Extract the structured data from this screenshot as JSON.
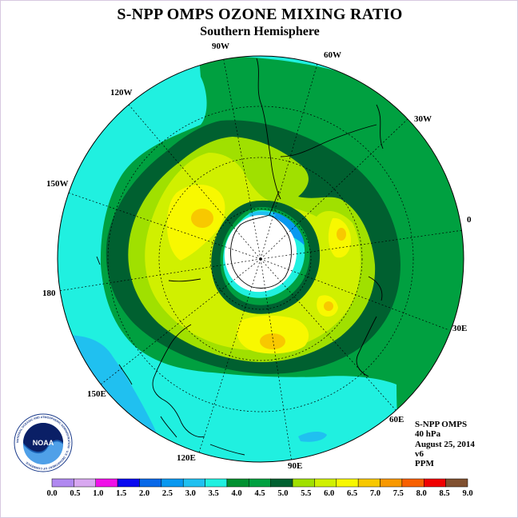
{
  "header": {
    "title": "S-NPP OMPS OZONE MIXING RATIO",
    "subtitle": "Southern Hemisphere"
  },
  "map": {
    "projection": "south-polar-stereographic",
    "longitude_labels": [
      "90W",
      "60W",
      "30W",
      "0",
      "30E",
      "60E",
      "90E",
      "120E",
      "150E",
      "180",
      "150W",
      "120W"
    ]
  },
  "info": {
    "instrument": "S-NPP OMPS",
    "pressure_level": "40 hPa",
    "date": "August 25, 2014",
    "version": "v6",
    "units": "PPM"
  },
  "logo": {
    "text": "NOAA",
    "ring_text": "NATIONAL OCEANIC AND ATMOSPHERIC ADMINISTRATION · U.S. DEPARTMENT OF COMMERCE"
  },
  "colorbar": {
    "labels": [
      "0.0",
      "0.5",
      "1.0",
      "1.5",
      "2.0",
      "2.5",
      "3.0",
      "3.5",
      "4.0",
      "4.5",
      "5.0",
      "5.5",
      "6.0",
      "6.5",
      "7.0",
      "7.5",
      "8.0",
      "8.5",
      "9.0"
    ],
    "colors": [
      "#b088f0",
      "#d8a8f0",
      "#f010e8",
      "#0808f0",
      "#0868e8",
      "#0898f0",
      "#20c0f0",
      "#20f0e0",
      "#009030",
      "#00a040",
      "#006030",
      "#a0e000",
      "#d0f000",
      "#f8f800",
      "#f8c800",
      "#f89800",
      "#f86000",
      "#f00000",
      "#805030"
    ]
  },
  "field_colors": {
    "cyan": "#20f0e0",
    "light_blue": "#20c0f0",
    "green": "#00a040",
    "dark_green": "#006030",
    "yellow_green": "#a0e000",
    "lime": "#d0f000",
    "yellow": "#f8f800",
    "gold": "#f8c800",
    "orange": "#f89800",
    "blue": "#0898f0",
    "polar_white": "#ffffff"
  }
}
